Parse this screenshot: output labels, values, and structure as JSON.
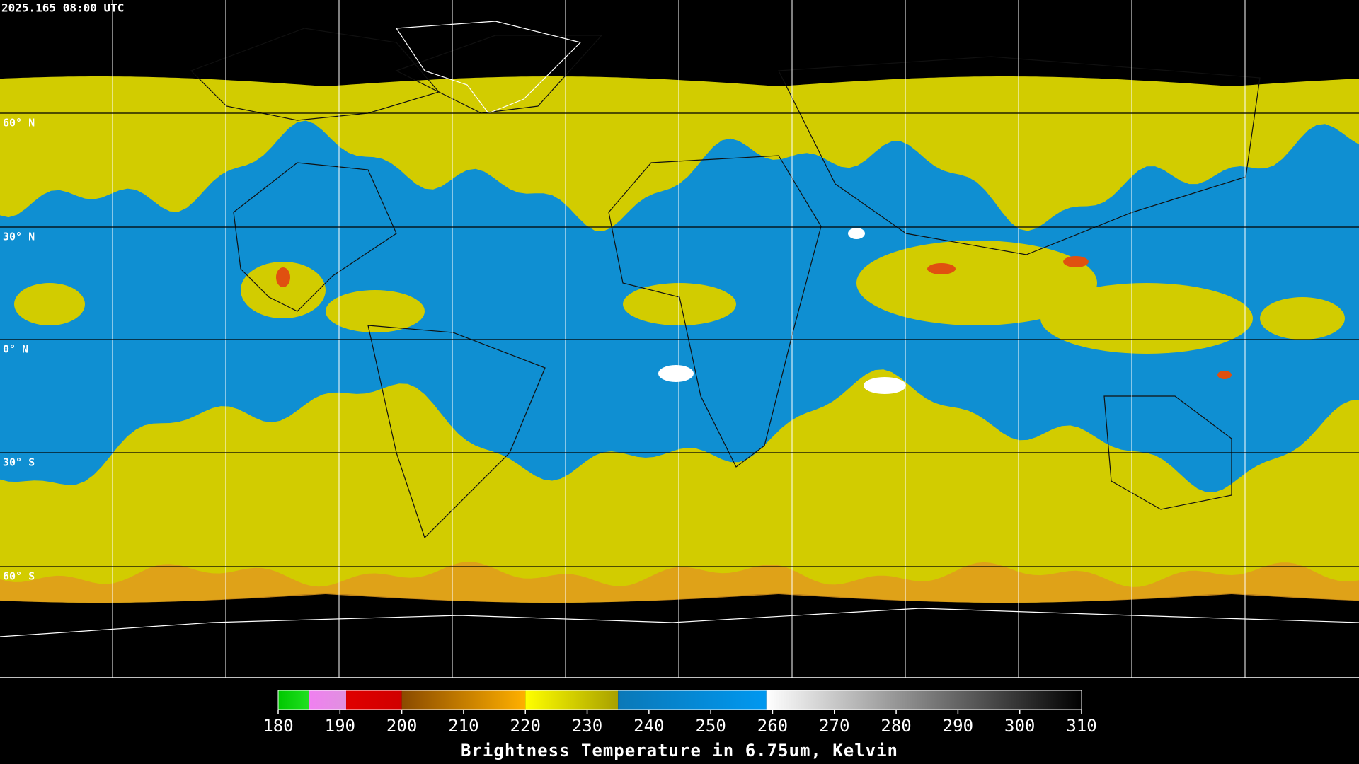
{
  "timestamp": "2025.165 08:00 UTC",
  "lat_labels": [
    "60° N",
    "30° N",
    "0° N",
    "30° S",
    "60° S"
  ],
  "colorbar": {
    "title": "Brightness Temperature in 6.75um, Kelvin",
    "range": [
      180,
      310
    ],
    "ticks": [
      180,
      190,
      200,
      210,
      220,
      230,
      240,
      250,
      260,
      270,
      280,
      290,
      300,
      310
    ],
    "segments": [
      {
        "from": 180,
        "to": 185,
        "colors": [
          "#00c800",
          "#20e020"
        ]
      },
      {
        "from": 185,
        "to": 191,
        "colors": [
          "#f080f0",
          "#e090e0"
        ]
      },
      {
        "from": 191,
        "to": 200,
        "colors": [
          "#e00000",
          "#d00000"
        ]
      },
      {
        "from": 200,
        "to": 220,
        "colors": [
          "#8a4a00",
          "#ffb000"
        ]
      },
      {
        "from": 220,
        "to": 235,
        "colors": [
          "#ffff00",
          "#a8a000"
        ]
      },
      {
        "from": 235,
        "to": 259,
        "colors": [
          "#0a78b8",
          "#0098f0"
        ]
      },
      {
        "from": 259,
        "to": 310,
        "colors": [
          "#ffffff",
          "#000000"
        ]
      }
    ]
  }
}
